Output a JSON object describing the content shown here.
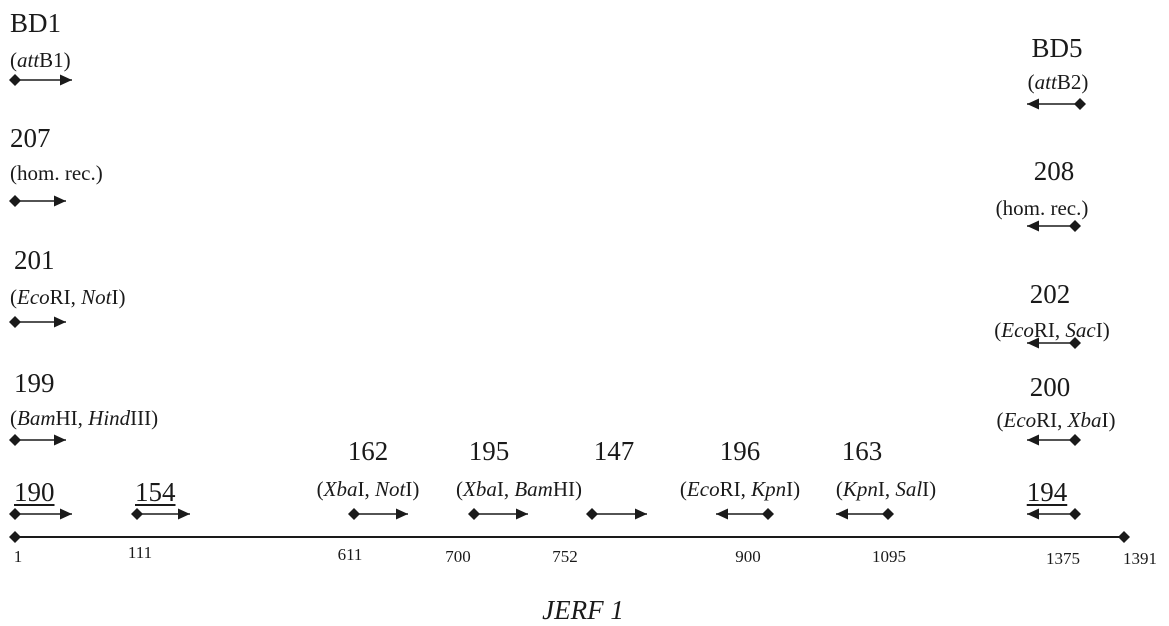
{
  "primers": [
    {
      "id": "bd1",
      "name": "BD1",
      "note_parts": [
        {
          "t": "("
        },
        {
          "t": "att",
          "i": true
        },
        {
          "t": "B1)"
        }
      ],
      "direction": "forward"
    },
    {
      "id": "207",
      "name": "207",
      "note_parts": [
        {
          "t": "(hom. rec.)"
        }
      ],
      "direction": "forward"
    },
    {
      "id": "201",
      "name": "201",
      "note_parts": [
        {
          "t": "("
        },
        {
          "t": "Eco",
          "i": true
        },
        {
          "t": "RI, "
        },
        {
          "t": "Not",
          "i": true
        },
        {
          "t": "I)"
        }
      ],
      "direction": "forward"
    },
    {
      "id": "199",
      "name": "199",
      "note_parts": [
        {
          "t": "("
        },
        {
          "t": "Bam",
          "i": true
        },
        {
          "t": "HI, "
        },
        {
          "t": "Hind",
          "i": true
        },
        {
          "t": "III)"
        }
      ],
      "direction": "forward"
    },
    {
      "id": "bd5",
      "name": "BD5",
      "note_parts": [
        {
          "t": "("
        },
        {
          "t": "att",
          "i": true
        },
        {
          "t": "B2)"
        }
      ],
      "direction": "reverse"
    },
    {
      "id": "208",
      "name": "208",
      "note_parts": [
        {
          "t": "(hom. rec.)"
        }
      ],
      "direction": "reverse"
    },
    {
      "id": "202",
      "name": "202",
      "note_parts": [
        {
          "t": "("
        },
        {
          "t": "Eco",
          "i": true
        },
        {
          "t": "RI, "
        },
        {
          "t": "Sac",
          "i": true
        },
        {
          "t": "I)"
        }
      ],
      "direction": "reverse"
    },
    {
      "id": "200",
      "name": "200",
      "note_parts": [
        {
          "t": "("
        },
        {
          "t": "Eco",
          "i": true
        },
        {
          "t": "RI, "
        },
        {
          "t": "Xba",
          "i": true
        },
        {
          "t": "I)"
        }
      ],
      "direction": "reverse"
    },
    {
      "id": "190",
      "name": "190",
      "note_parts": [],
      "direction": "forward"
    },
    {
      "id": "154",
      "name": "154",
      "note_parts": [],
      "direction": "forward"
    },
    {
      "id": "162",
      "name": "162",
      "note_parts": [
        {
          "t": "("
        },
        {
          "t": "Xba",
          "i": true
        },
        {
          "t": "I, "
        },
        {
          "t": "Not",
          "i": true
        },
        {
          "t": "I)"
        }
      ],
      "direction": "forward"
    },
    {
      "id": "195",
      "name": "195",
      "note_parts": [
        {
          "t": "("
        },
        {
          "t": "Xba",
          "i": true
        },
        {
          "t": "I, "
        },
        {
          "t": "Bam",
          "i": true
        },
        {
          "t": "HI)"
        }
      ],
      "direction": "forward"
    },
    {
      "id": "147",
      "name": "147",
      "note_parts": [],
      "direction": "forward"
    },
    {
      "id": "196",
      "name": "196",
      "note_parts": [
        {
          "t": "("
        },
        {
          "t": "Eco",
          "i": true
        },
        {
          "t": "RI, "
        },
        {
          "t": "Kpn",
          "i": true
        },
        {
          "t": "I)"
        }
      ],
      "direction": "reverse"
    },
    {
      "id": "163",
      "name": "163",
      "note_parts": [
        {
          "t": "("
        },
        {
          "t": "Kpn",
          "i": true
        },
        {
          "t": "I, "
        },
        {
          "t": "Sal",
          "i": true
        },
        {
          "t": "I)"
        }
      ],
      "direction": "reverse"
    },
    {
      "id": "194",
      "name": "194",
      "note_parts": [],
      "direction": "reverse"
    }
  ],
  "positions": [
    "1",
    "111",
    "611",
    "700",
    "752",
    "900",
    "1095",
    "1375",
    "1391"
  ],
  "gene_name": "JERF 1",
  "colors": {
    "ink": "#1a1a1a",
    "background": "#ffffff"
  }
}
